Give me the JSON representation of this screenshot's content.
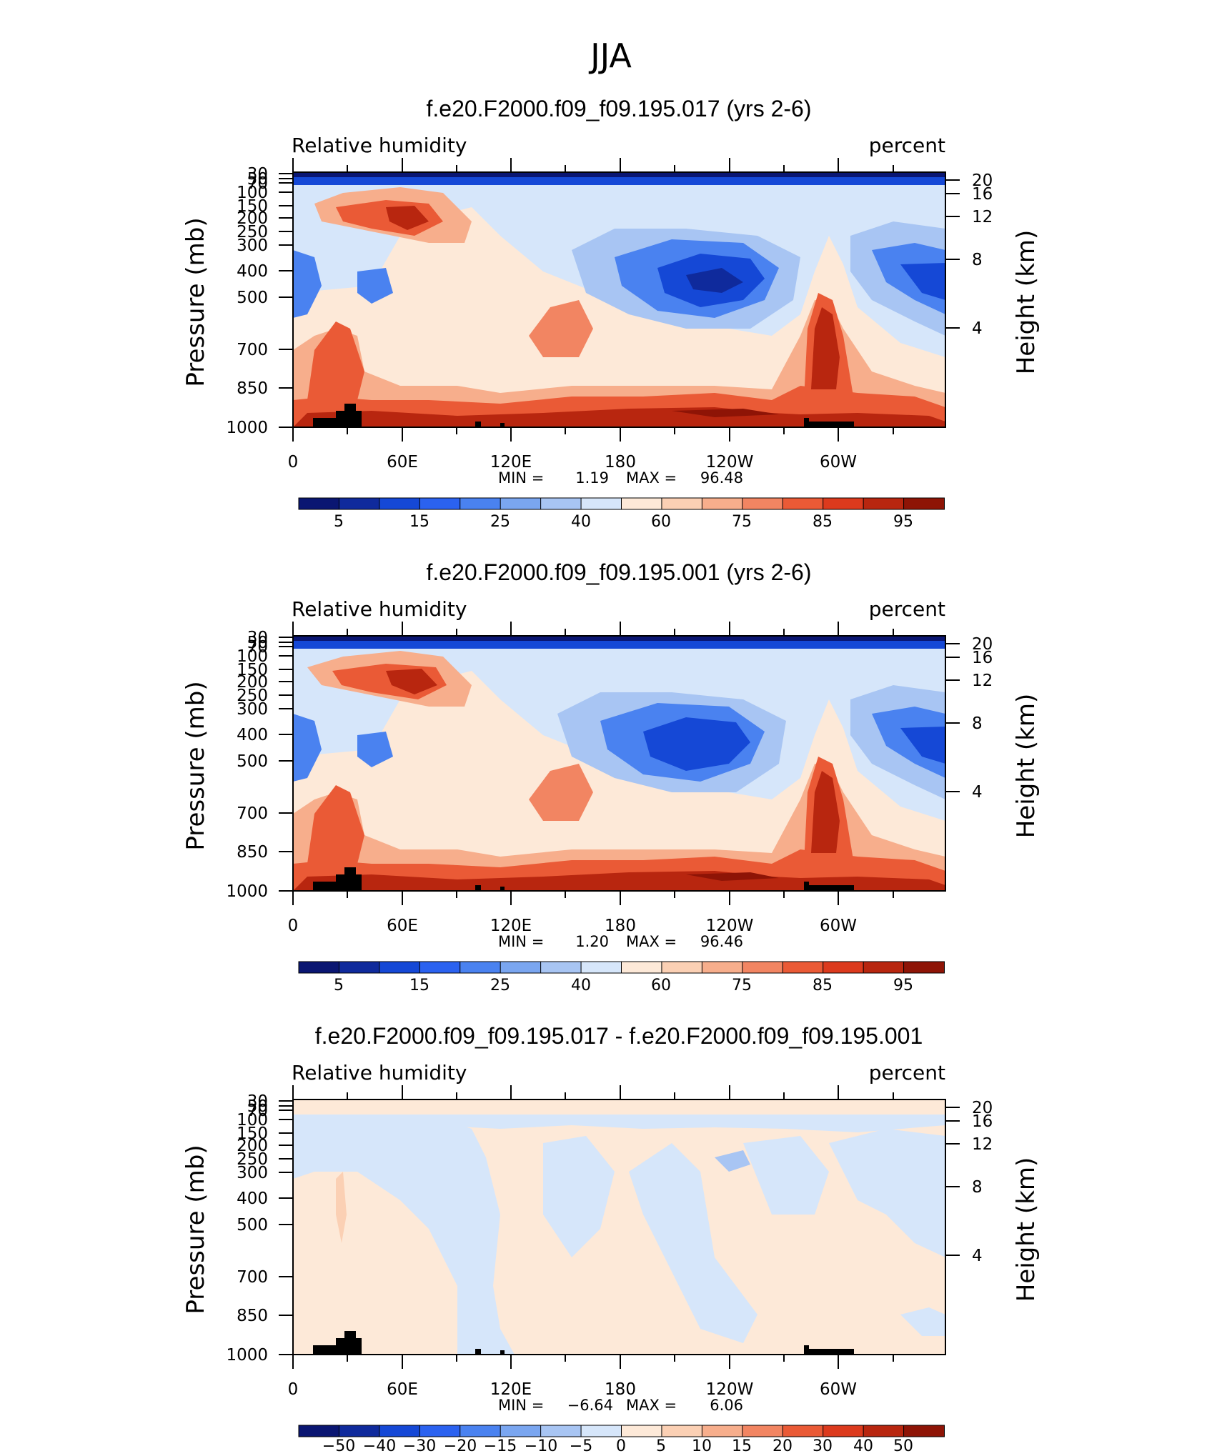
{
  "figure_title": "JJA",
  "colors": {
    "rh_palette": [
      "#0a1672",
      "#0f2a9c",
      "#1548d6",
      "#2b62f0",
      "#4a82f0",
      "#7aa6f0",
      "#a8c5f3",
      "#d6e6fa",
      "#fde9d8",
      "#fbd0b4",
      "#f7ae8c",
      "#f28562",
      "#ea5a36",
      "#dc3a1d",
      "#b8260f",
      "#8e1406"
    ],
    "diff_palette": [
      "#0a1672",
      "#0f2a9c",
      "#1548d6",
      "#2b62f0",
      "#4a82f0",
      "#7aa6f0",
      "#a8c5f3",
      "#d6e6fa",
      "#fde9d8",
      "#fbd0b4",
      "#f7ae8c",
      "#f28562",
      "#ea5a36",
      "#dc3a1d",
      "#b8260f",
      "#8e1406"
    ],
    "topography": "#000000"
  },
  "chart_data": [
    {
      "type": "heatmap",
      "title": "f.e20.F2000.f09_f09.195.017 (yrs 2-6)",
      "left_label": "Relative humidity",
      "right_label": "percent",
      "ylabel": "Pressure (mb)",
      "ylabel_right": "Height (km)",
      "x_ticks": [
        "0",
        "60E",
        "120E",
        "180",
        "120W",
        "60W"
      ],
      "y_ticks": [
        "30",
        "50",
        "70",
        "100",
        "150",
        "200",
        "250",
        "300",
        "400",
        "500",
        "700",
        "850",
        "1000"
      ],
      "height_ticks": [
        "20",
        "16",
        "12",
        "8",
        "4"
      ],
      "min_label": "MIN =",
      "min_value": "1.19",
      "max_label": "MAX =",
      "max_value": "96.48",
      "colorbar_labels": [
        "5",
        "15",
        "25",
        "40",
        "60",
        "75",
        "85",
        "95"
      ]
    },
    {
      "type": "heatmap",
      "title": "f.e20.F2000.f09_f09.195.001 (yrs 2-6)",
      "left_label": "Relative humidity",
      "right_label": "percent",
      "ylabel": "Pressure (mb)",
      "ylabel_right": "Height (km)",
      "x_ticks": [
        "0",
        "60E",
        "120E",
        "180",
        "120W",
        "60W"
      ],
      "y_ticks": [
        "30",
        "50",
        "70",
        "100",
        "150",
        "200",
        "250",
        "300",
        "400",
        "500",
        "700",
        "850",
        "1000"
      ],
      "height_ticks": [
        "20",
        "16",
        "12",
        "8",
        "4"
      ],
      "min_label": "MIN =",
      "min_value": "1.20",
      "max_label": "MAX =",
      "max_value": "96.46",
      "colorbar_labels": [
        "5",
        "15",
        "25",
        "40",
        "60",
        "75",
        "85",
        "95"
      ]
    },
    {
      "type": "heatmap",
      "title": "f.e20.F2000.f09_f09.195.017 - f.e20.F2000.f09_f09.195.001",
      "left_label": "Relative humidity",
      "right_label": "percent",
      "ylabel": "Pressure (mb)",
      "ylabel_right": "Height (km)",
      "x_ticks": [
        "0",
        "60E",
        "120E",
        "180",
        "120W",
        "60W"
      ],
      "y_ticks": [
        "30",
        "50",
        "70",
        "100",
        "150",
        "200",
        "250",
        "300",
        "400",
        "500",
        "700",
        "850",
        "1000"
      ],
      "height_ticks": [
        "20",
        "16",
        "12",
        "8",
        "4"
      ],
      "min_label": "MIN =",
      "min_value": "−6.64",
      "max_label": "MAX =",
      "max_value": "6.06",
      "colorbar_labels": [
        "−50",
        "−40",
        "−30",
        "−20",
        "−15",
        "−10",
        "−5",
        "0",
        "5",
        "10",
        "15",
        "20",
        "30",
        "40",
        "50"
      ]
    }
  ]
}
